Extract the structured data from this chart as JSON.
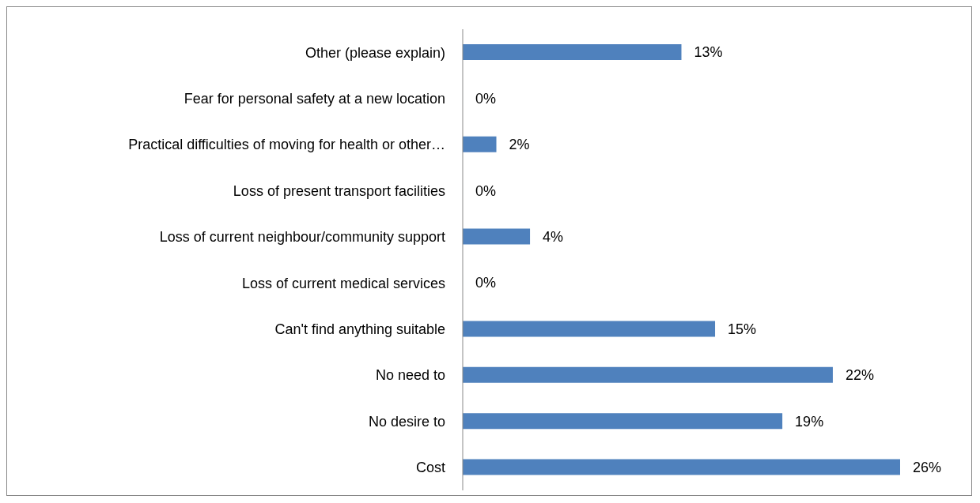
{
  "chart_data": {
    "type": "bar",
    "orientation": "horizontal",
    "categories": [
      "Other (please explain)",
      "Fear for personal safety at a new location",
      "Practical difficulties of moving for health or other…",
      "Loss of present transport facilities",
      "Loss of current neighbour/community support",
      "Loss of current medical services",
      "Can't find anything suitable",
      "No need to",
      "No desire to",
      "Cost"
    ],
    "values": [
      13,
      0,
      2,
      0,
      4,
      0,
      15,
      22,
      19,
      26
    ],
    "value_labels": [
      "13%",
      "0%",
      "2%",
      "0%",
      "4%",
      "0%",
      "15%",
      "22%",
      "19%",
      "26%"
    ],
    "color": "#4f81bd",
    "grid": false,
    "legend": false
  }
}
